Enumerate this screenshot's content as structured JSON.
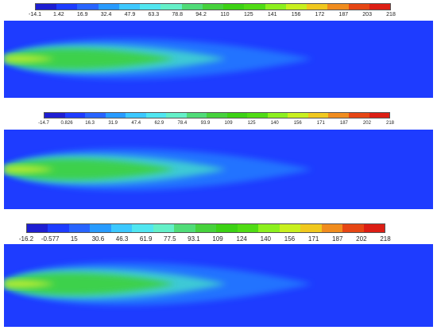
{
  "figure": {
    "panels": [
      {
        "colorbar": {
          "ticks": [
            "-14.1",
            "1.42",
            "16.9",
            "32.4",
            "47.9",
            "63.3",
            "78.8",
            "94.2",
            "110",
            "125",
            "141",
            "156",
            "172",
            "187",
            "203",
            "218"
          ],
          "min": -14.1,
          "max": 218
        }
      },
      {
        "colorbar": {
          "ticks": [
            "-14.7",
            "0.826",
            "16.3",
            "31.9",
            "47.4",
            "62.9",
            "78.4",
            "93.9",
            "109",
            "125",
            "140",
            "156",
            "171",
            "187",
            "202",
            "218"
          ],
          "min": -14.7,
          "max": 218
        }
      },
      {
        "colorbar": {
          "ticks": [
            "-16.2",
            "-0.577",
            "15",
            "30.6",
            "46.3",
            "61.9",
            "77.5",
            "93.1",
            "109",
            "124",
            "140",
            "156",
            "171",
            "187",
            "202",
            "218"
          ],
          "min": -16.2,
          "max": 218
        }
      }
    ],
    "colormap": [
      "#1e1ed2",
      "#1e3cff",
      "#2864ff",
      "#289bff",
      "#3cc8ff",
      "#50e6f0",
      "#64f0c8",
      "#50dc78",
      "#46d23c",
      "#3cd214",
      "#50dc14",
      "#8cf01e",
      "#c8f01e",
      "#f0c81e",
      "#f08c1e",
      "#e64614",
      "#dc1e14"
    ],
    "plume_colors": {
      "background": "#1e3cff",
      "outer": "#28a0ff",
      "mid": "#46e6c8",
      "core": "#3cd23c",
      "jet": "#c8f032"
    }
  }
}
